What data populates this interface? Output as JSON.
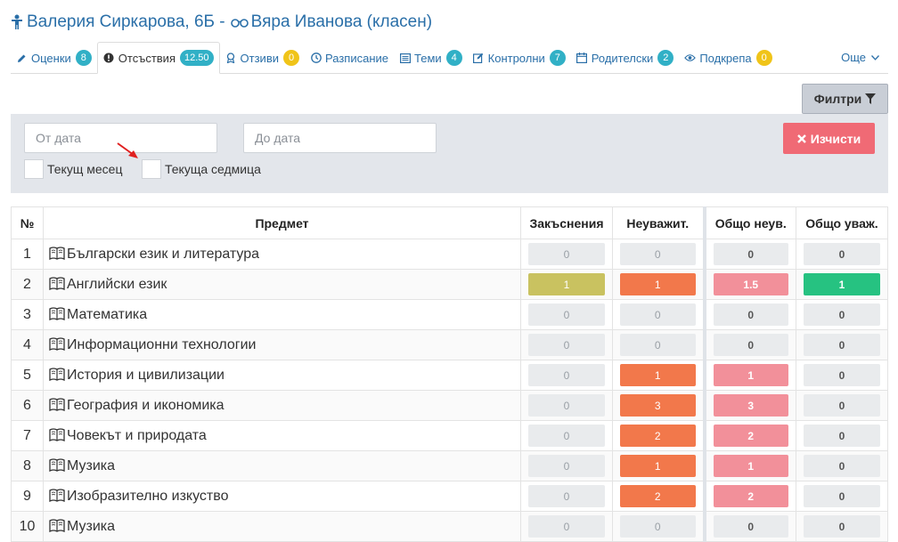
{
  "header": {
    "student": "Валерия Сиркарова, 6Б -",
    "teacher": "Вяра Иванова (класен)"
  },
  "tabs": [
    {
      "label": "Оценки",
      "badge": "8",
      "badge_color": "teal",
      "icon": "pencil-icon"
    },
    {
      "label": "Отсъствия",
      "badge": "12.50",
      "badge_color": "teal",
      "icon": "info-icon",
      "active": true
    },
    {
      "label": "Отзиви",
      "badge": "0",
      "badge_color": "yellow",
      "icon": "award-icon"
    },
    {
      "label": "Разписание",
      "icon": "clock-icon"
    },
    {
      "label": "Теми",
      "badge": "4",
      "badge_color": "teal",
      "icon": "list-icon"
    },
    {
      "label": "Контролни",
      "badge": "7",
      "badge_color": "teal",
      "icon": "edit-icon"
    },
    {
      "label": "Родителски",
      "badge": "2",
      "badge_color": "teal",
      "icon": "calendar-icon"
    },
    {
      "label": "Подкрепа",
      "badge": "0",
      "badge_color": "yellow",
      "icon": "eye-icon"
    }
  ],
  "more_label": "Още",
  "filters_label": "Филтри",
  "filters": {
    "from_placeholder": "От дата",
    "to_placeholder": "До дата",
    "current_month": "Текущ месец",
    "current_week": "Текуща седмица",
    "clear_label": "Изчисти"
  },
  "table": {
    "headers": [
      "№",
      "Предмет",
      "Закъснения",
      "Неуважит.",
      "Общо неув.",
      "Общо уваж."
    ],
    "rows": [
      {
        "n": "1",
        "subject": "Български език и литература",
        "late": "0",
        "unexc": "0",
        "total_unexc": "0",
        "total_exc": "0"
      },
      {
        "n": "2",
        "subject": "Английски език",
        "late": "1",
        "unexc": "1",
        "total_unexc": "1.5",
        "total_exc": "1"
      },
      {
        "n": "3",
        "subject": "Математика",
        "late": "0",
        "unexc": "0",
        "total_unexc": "0",
        "total_exc": "0"
      },
      {
        "n": "4",
        "subject": "Информационни технологии",
        "late": "0",
        "unexc": "0",
        "total_unexc": "0",
        "total_exc": "0"
      },
      {
        "n": "5",
        "subject": "История и цивилизации",
        "late": "0",
        "unexc": "1",
        "total_unexc": "1",
        "total_exc": "0"
      },
      {
        "n": "6",
        "subject": "География и икономика",
        "late": "0",
        "unexc": "3",
        "total_unexc": "3",
        "total_exc": "0"
      },
      {
        "n": "7",
        "subject": "Човекът и природата",
        "late": "0",
        "unexc": "2",
        "total_unexc": "2",
        "total_exc": "0"
      },
      {
        "n": "8",
        "subject": "Музика",
        "late": "0",
        "unexc": "1",
        "total_unexc": "1",
        "total_exc": "0"
      },
      {
        "n": "9",
        "subject": "Изобразително изкуство",
        "late": "0",
        "unexc": "2",
        "total_unexc": "2",
        "total_exc": "0"
      },
      {
        "n": "10",
        "subject": "Музика",
        "late": "0",
        "unexc": "0",
        "total_unexc": "0",
        "total_exc": "0"
      }
    ]
  },
  "colors": {
    "link_blue": "#2a6fa8",
    "late_nonzero": "#c9c260",
    "unexcused_nonzero": "#f2784b",
    "total_unexcused_nonzero": "#f2909a",
    "total_excused_nonzero": "#26c281",
    "zero": "#e9ebed",
    "clear_button": "#f06a75"
  }
}
